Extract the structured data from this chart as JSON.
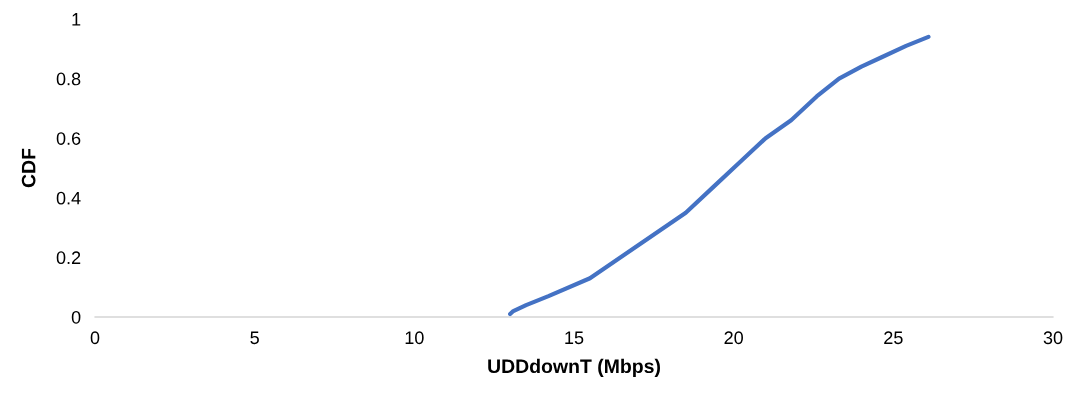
{
  "chart_data": {
    "type": "line",
    "xlabel": "UDDdownT (Mbps)",
    "ylabel": "CDF",
    "series": [
      {
        "color": "#4472c4",
        "x": [
          13.0,
          13.1,
          13.5,
          14.2,
          15.5,
          17.0,
          18.5,
          19.4,
          20.2,
          21.0,
          21.8,
          22.6,
          23.3,
          24.0,
          24.6,
          25.4,
          26.1
        ],
        "values": [
          0.01,
          0.02,
          0.04,
          0.07,
          0.13,
          0.24,
          0.35,
          0.44,
          0.52,
          0.6,
          0.66,
          0.74,
          0.8,
          0.84,
          0.87,
          0.91,
          0.94
        ]
      }
    ],
    "xlim": [
      0,
      30
    ],
    "xticks": [
      0,
      5,
      10,
      15,
      20,
      25,
      30
    ],
    "ylim": [
      0,
      1
    ],
    "yticks": [
      0,
      0.2,
      0.4,
      0.6,
      0.8,
      1
    ],
    "grid": false,
    "legend": false,
    "line_style": "solid",
    "marker": "none"
  }
}
